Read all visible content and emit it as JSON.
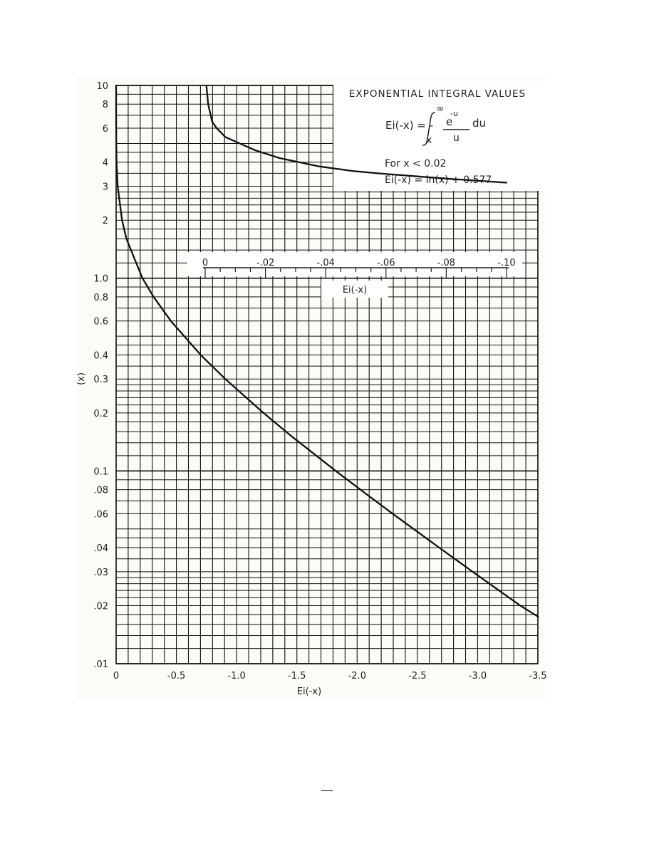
{
  "chart_data": {
    "type": "line",
    "title": "EXPONENTIAL INTEGRAL VALUES",
    "formula": {
      "lhs": "Ei(-x) = -",
      "upper_limit": "∞",
      "lower_limit": "x",
      "numerator": "e",
      "exponent": "-u",
      "denominator": "u",
      "differential": "du"
    },
    "note_line1": "For  x < 0.02",
    "note_line2": "Ei(-x) = ln(x) + 0.577",
    "xlabel": "Ei(-x)",
    "ylabel": "(x)",
    "x_scale": "linear",
    "y_scale": "log",
    "xlim": [
      0,
      -3.5
    ],
    "ylim": [
      0.01,
      10
    ],
    "grid": true,
    "x_ticks": [
      {
        "value": 0,
        "label": "0"
      },
      {
        "value": -0.5,
        "label": "-0.5"
      },
      {
        "value": -1.0,
        "label": "-1.0"
      },
      {
        "value": -1.5,
        "label": "-1.5"
      },
      {
        "value": -2.0,
        "label": "-2.0"
      },
      {
        "value": -2.5,
        "label": "-2.5"
      },
      {
        "value": -3.0,
        "label": "-3.0"
      },
      {
        "value": -3.5,
        "label": "-3.5"
      }
    ],
    "y_ticks": [
      {
        "value": 10,
        "label": "10"
      },
      {
        "value": 8,
        "label": "8"
      },
      {
        "value": 6,
        "label": "6"
      },
      {
        "value": 4,
        "label": "4"
      },
      {
        "value": 3,
        "label": "3"
      },
      {
        "value": 2,
        "label": "2"
      },
      {
        "value": 1,
        "label": "1.0"
      },
      {
        "value": 0.8,
        "label": "0.8"
      },
      {
        "value": 0.6,
        "label": "0.6"
      },
      {
        "value": 0.4,
        "label": "0.4"
      },
      {
        "value": 0.3,
        "label": "0.3"
      },
      {
        "value": 0.2,
        "label": "0.2"
      },
      {
        "value": 0.1,
        "label": "0.1"
      },
      {
        "value": 0.08,
        "label": ".08"
      },
      {
        "value": 0.06,
        "label": ".06"
      },
      {
        "value": 0.04,
        "label": ".04"
      },
      {
        "value": 0.03,
        "label": ".03"
      },
      {
        "value": 0.02,
        "label": ".02"
      },
      {
        "value": 0.01,
        "label": ".01"
      }
    ],
    "series": [
      {
        "scale": "main",
        "points": [
          {
            "x": 0,
            "y": 10
          },
          {
            "x": -0.0001,
            "y": 7
          },
          {
            "x": -0.0004,
            "y": 6
          },
          {
            "x": -0.0011,
            "y": 5
          },
          {
            "x": -0.0038,
            "y": 4
          },
          {
            "x": -0.013,
            "y": 3
          },
          {
            "x": -0.049,
            "y": 2
          },
          {
            "x": -0.086,
            "y": 1.6
          },
          {
            "x": -0.155,
            "y": 1.25
          },
          {
            "x": -0.219,
            "y": 1.0
          },
          {
            "x": -0.311,
            "y": 0.8
          },
          {
            "x": -0.454,
            "y": 0.6
          },
          {
            "x": -0.702,
            "y": 0.4
          },
          {
            "x": -0.906,
            "y": 0.3
          },
          {
            "x": -1.223,
            "y": 0.2
          },
          {
            "x": -1.464,
            "y": 0.15
          },
          {
            "x": -1.823,
            "y": 0.1
          },
          {
            "x": -2.027,
            "y": 0.08
          },
          {
            "x": -2.295,
            "y": 0.06
          },
          {
            "x": -2.681,
            "y": 0.04
          },
          {
            "x": -2.959,
            "y": 0.03
          },
          {
            "x": -3.355,
            "y": 0.02
          },
          {
            "x": -3.503,
            "y": 0.0175
          }
        ]
      },
      {
        "scale": "inset",
        "points": [
          {
            "x": -0.00041,
            "y": 10
          },
          {
            "x": -0.001,
            "y": 8
          },
          {
            "x": -0.0023,
            "y": 6.5
          },
          {
            "x": -0.0038,
            "y": 6
          },
          {
            "x": -0.0067,
            "y": 5.4
          },
          {
            "x": -0.0115,
            "y": 5
          },
          {
            "x": -0.0168,
            "y": 4.6
          },
          {
            "x": -0.0247,
            "y": 4.2
          },
          {
            "x": -0.0379,
            "y": 3.8
          },
          {
            "x": -0.0489,
            "y": 3.6
          },
          {
            "x": -0.0573,
            "y": 3.5
          },
          {
            "x": -0.0784,
            "y": 3.3
          },
          {
            "x": -0.1,
            "y": 3.13
          }
        ]
      }
    ],
    "inset_axis": {
      "xlim": [
        0,
        -0.1
      ],
      "ticks": [
        {
          "value": 0,
          "label": "0"
        },
        {
          "value": -0.02,
          "label": "-.02"
        },
        {
          "value": -0.04,
          "label": "-.04"
        },
        {
          "value": -0.06,
          "label": "-.06"
        },
        {
          "value": -0.08,
          "label": "-.08"
        },
        {
          "value": -0.1,
          "label": "-.10"
        }
      ],
      "label": "Ei(-x)"
    }
  }
}
